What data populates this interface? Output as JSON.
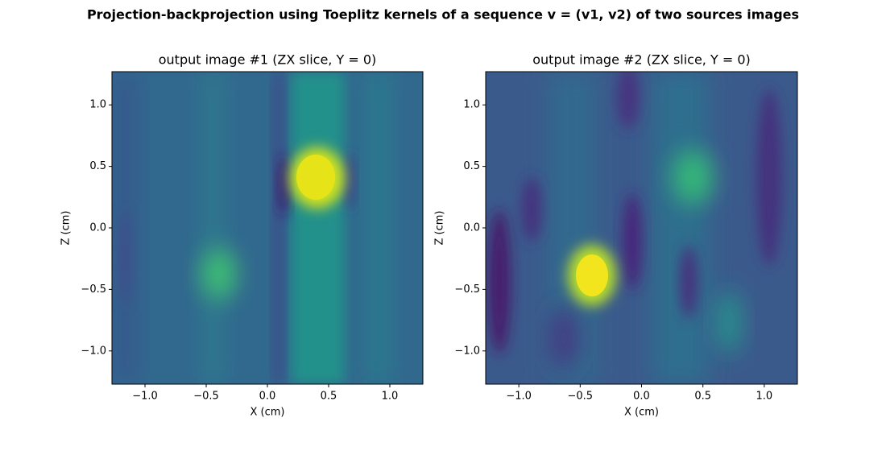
{
  "title": "Projection-backprojection using Toeplitz kernels of a sequence v = (v1, v2) of two sources images",
  "chart_data": [
    {
      "type": "heatmap",
      "title": "output image #1 (ZX slice, Y = 0)",
      "xlabel": "X (cm)",
      "ylabel": "Z (cm)",
      "xlim": [
        -1.27,
        1.27
      ],
      "ylim": [
        -1.27,
        1.27
      ],
      "xticks": [
        {
          "value": -1.0,
          "label": "−1.0"
        },
        {
          "value": -0.5,
          "label": "−0.5"
        },
        {
          "value": 0.0,
          "label": "0.0"
        },
        {
          "value": 0.5,
          "label": "0.5"
        },
        {
          "value": 1.0,
          "label": "1.0"
        }
      ],
      "yticks": [
        {
          "value": -1.0,
          "label": "−1.0"
        },
        {
          "value": -0.5,
          "label": "−0.5"
        },
        {
          "value": 0.0,
          "label": "0.0"
        },
        {
          "value": 0.5,
          "label": "0.5"
        },
        {
          "value": 1.0,
          "label": "1.0"
        }
      ]
    },
    {
      "type": "heatmap",
      "title": "output image #2 (ZX slice, Y = 0)",
      "xlabel": "X (cm)",
      "ylabel": "Z (cm)",
      "xlim": [
        -1.27,
        1.27
      ],
      "ylim": [
        -1.27,
        1.27
      ],
      "xticks": [
        {
          "value": -1.0,
          "label": "−1.0"
        },
        {
          "value": -0.5,
          "label": "−0.5"
        },
        {
          "value": 0.0,
          "label": "0.0"
        },
        {
          "value": 0.5,
          "label": "0.5"
        },
        {
          "value": 1.0,
          "label": "1.0"
        }
      ],
      "yticks": [
        {
          "value": -1.0,
          "label": "−1.0"
        },
        {
          "value": -0.5,
          "label": "−0.5"
        },
        {
          "value": 0.0,
          "label": "0.0"
        },
        {
          "value": 0.5,
          "label": "0.5"
        },
        {
          "value": 1.0,
          "label": "1.0"
        }
      ]
    }
  ]
}
